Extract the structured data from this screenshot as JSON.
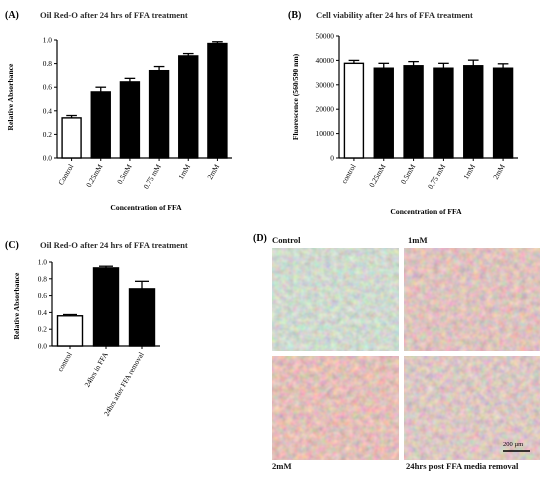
{
  "chart_data": [
    {
      "panel": "(A)",
      "type": "bar",
      "title": "Oil Red-O after 24 hrs of FFA treatment",
      "xlabel": "Concentration of FFA",
      "ylabel": "Relative Absorbance",
      "ylim": [
        0,
        1.0
      ],
      "yticks": [
        "0.0",
        "0.2",
        "0.4",
        "0.6",
        "0.8",
        "1.0"
      ],
      "categories": [
        "Control",
        "0.25mM",
        "0.5mM",
        "0.75 mM",
        "1mM",
        "2mM"
      ],
      "values": [
        0.34,
        0.56,
        0.645,
        0.74,
        0.865,
        0.97
      ],
      "errors": [
        0.02,
        0.04,
        0.03,
        0.035,
        0.02,
        0.015
      ],
      "fills": [
        "#ffffff",
        "#000000",
        "#000000",
        "#000000",
        "#000000",
        "#000000"
      ],
      "grid": false,
      "legend": "none"
    },
    {
      "panel": "(B)",
      "type": "bar",
      "title": "Cell viability after 24 hrs of FFA treatment",
      "xlabel": "Concentration of FFA",
      "ylabel": "Fluorescence (560/590 nm)",
      "ylim": [
        0,
        50000
      ],
      "yticks": [
        "0",
        "10000",
        "20000",
        "30000",
        "40000",
        "50000"
      ],
      "categories": [
        "control",
        "0.25mM",
        "0.5mM",
        "0.75 mM",
        "1mM",
        "2mM"
      ],
      "values": [
        38800,
        36800,
        37800,
        36800,
        37800,
        36800
      ],
      "errors": [
        1200,
        2000,
        1700,
        2000,
        2300,
        1800
      ],
      "fills": [
        "#ffffff",
        "#000000",
        "#000000",
        "#000000",
        "#000000",
        "#000000"
      ],
      "grid": false,
      "legend": "none"
    },
    {
      "panel": "(C)",
      "type": "bar",
      "title": "Oil Red-O after 24 hrs of FFA treatment",
      "xlabel": "",
      "ylabel": "Relative Absorbance",
      "ylim": [
        0,
        1.0
      ],
      "yticks": [
        "0.0",
        "0.2",
        "0.4",
        "0.6",
        "0.8",
        "1.0"
      ],
      "categories": [
        "control",
        "24hrs in FFA",
        "24hrs after FFA removal"
      ],
      "values": [
        0.36,
        0.93,
        0.68
      ],
      "errors": [
        0.015,
        0.02,
        0.09
      ],
      "fills": [
        "#ffffff",
        "#000000",
        "#000000"
      ],
      "grid": false,
      "legend": "none"
    }
  ],
  "micrographs": {
    "panel": "(D)",
    "labels": [
      "Control",
      "1mM",
      "2mM",
      "24hrs post FFA media removal"
    ],
    "scale_bar": "200 µm"
  }
}
